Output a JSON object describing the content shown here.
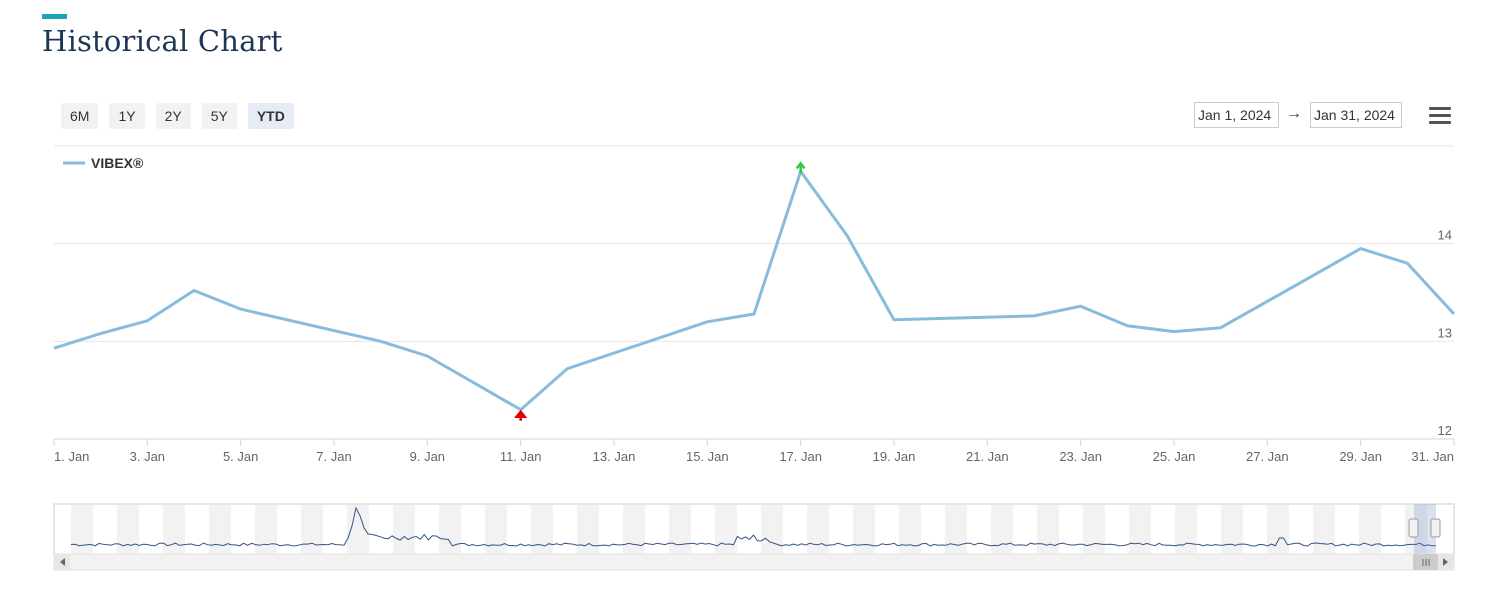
{
  "header": {
    "title": "Historical Chart"
  },
  "range_selector": {
    "buttons": [
      {
        "label": "6M",
        "active": false
      },
      {
        "label": "1Y",
        "active": false
      },
      {
        "label": "2Y",
        "active": false
      },
      {
        "label": "5Y",
        "active": false
      },
      {
        "label": "YTD",
        "active": true
      }
    ]
  },
  "date_range": {
    "from": "Jan 1, 2024",
    "arrow": "→",
    "to": "Jan 31, 2024"
  },
  "icons": {
    "menu": "hamburger-menu-icon",
    "max_marker": "up-arrow-green",
    "min_marker": "up-arrow-red"
  },
  "colors": {
    "series": "#88bcdd",
    "accent": "#1aa5b8",
    "title": "#1d3557",
    "max_marker": "#2ecc40",
    "min_marker": "#e00000",
    "navigator_line": "#335588"
  },
  "chart_data": {
    "type": "line",
    "legend": {
      "position": "top-left"
    },
    "series": [
      {
        "name": "VIBEX®",
        "x": [
          "1. Jan",
          "2. Jan",
          "3. Jan",
          "4. Jan",
          "5. Jan",
          "8. Jan",
          "9. Jan",
          "11. Jan",
          "12. Jan",
          "15. Jan",
          "16. Jan",
          "17. Jan",
          "18. Jan",
          "19. Jan",
          "22. Jan",
          "23. Jan",
          "24. Jan",
          "25. Jan",
          "26. Jan",
          "29. Jan",
          "30. Jan",
          "31. Jan"
        ],
        "day": [
          1,
          2,
          3,
          4,
          5,
          8,
          9,
          11,
          12,
          15,
          16,
          17,
          18,
          19,
          22,
          23,
          24,
          25,
          26,
          29,
          30,
          31
        ],
        "values": [
          12.93,
          13.08,
          13.21,
          13.52,
          13.33,
          13.0,
          12.85,
          12.3,
          12.72,
          13.2,
          13.28,
          14.74,
          14.08,
          13.22,
          13.26,
          13.36,
          13.16,
          13.1,
          13.14,
          13.95,
          13.8,
          13.28
        ]
      }
    ],
    "x_ticks": [
      "1. Jan",
      "3. Jan",
      "5. Jan",
      "7. Jan",
      "9. Jan",
      "11. Jan",
      "13. Jan",
      "15. Jan",
      "17. Jan",
      "19. Jan",
      "21. Jan",
      "23. Jan",
      "25. Jan",
      "27. Jan",
      "29. Jan",
      "31. Jan"
    ],
    "y_ticks": [
      "12",
      "13",
      "14"
    ],
    "ylim": [
      12,
      15
    ],
    "xlim": [
      1,
      31
    ],
    "grid": true
  }
}
